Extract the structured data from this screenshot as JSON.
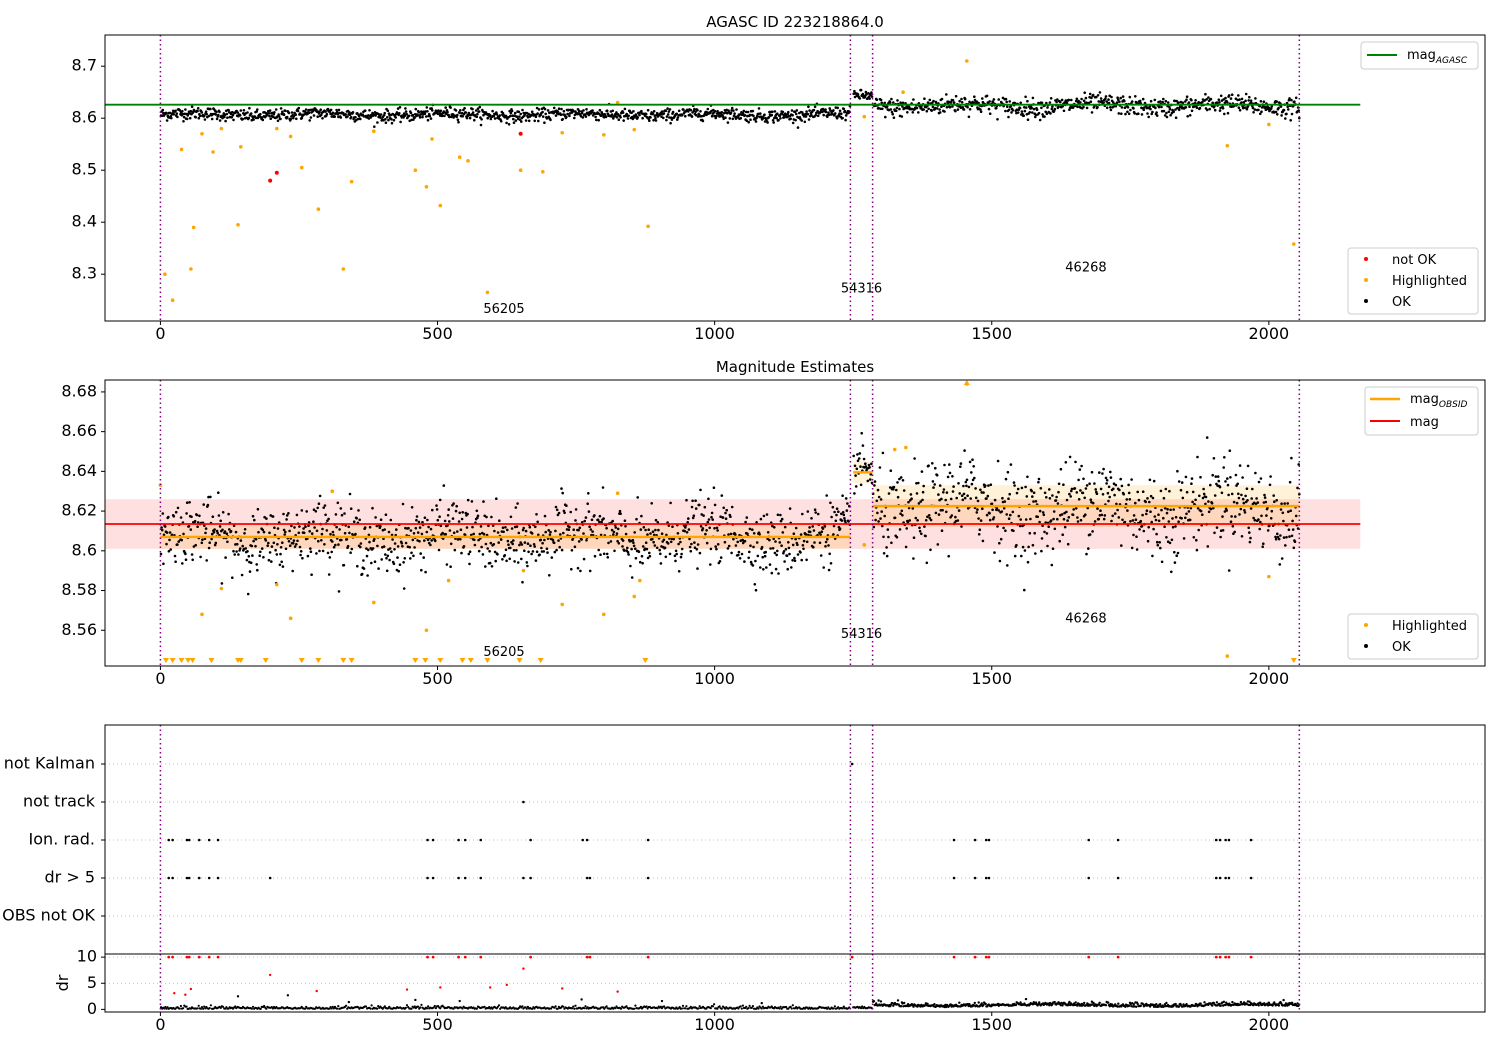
{
  "chart_data": [
    {
      "type": "scatter",
      "title": "AGASC ID 223218864.0",
      "xlim": [
        -100,
        2390
      ],
      "ylim": [
        8.21,
        8.76
      ],
      "xticks": [
        0,
        500,
        1000,
        1500,
        2000
      ],
      "yticks": [
        8.3,
        8.4,
        8.5,
        8.6,
        8.7
      ],
      "obsid_boundaries": [
        0,
        1245,
        1285,
        2055
      ],
      "obsid_labels": [
        {
          "text": "56205",
          "x": 620,
          "y": 8.225
        },
        {
          "text": "54316",
          "x": 1265,
          "y": 8.265
        },
        {
          "text": "46268",
          "x": 1670,
          "y": 8.305
        }
      ],
      "lines": [
        {
          "name": "mag_AGASC",
          "color": "#008000",
          "x": [
            -100,
            2165
          ],
          "y": [
            8.626,
            8.626
          ]
        }
      ],
      "segments": [
        {
          "x": [
            0,
            1245
          ],
          "mean": 8.607,
          "sd": 0.006,
          "color": "#000000"
        },
        {
          "x": [
            1250,
            1285
          ],
          "mean": 8.643,
          "sd": 0.005,
          "color": "#000000"
        },
        {
          "x": [
            1285,
            2055
          ],
          "mean": 8.624,
          "sd": 0.009,
          "color": "#000000"
        }
      ],
      "highlighted": {
        "x": [
          8,
          22,
          38,
          55,
          60,
          75,
          95,
          110,
          140,
          145,
          210,
          235,
          255,
          285,
          330,
          345,
          385,
          460,
          480,
          490,
          505,
          540,
          555,
          590,
          650,
          690,
          725,
          800,
          825,
          855,
          880,
          1270,
          1340,
          1455,
          1925,
          2000,
          2045
        ],
        "y": [
          8.3,
          8.25,
          8.54,
          8.31,
          8.39,
          8.57,
          8.535,
          8.58,
          8.395,
          8.545,
          8.58,
          8.565,
          8.505,
          8.425,
          8.31,
          8.478,
          8.575,
          8.5,
          8.468,
          8.56,
          8.432,
          8.525,
          8.518,
          8.265,
          8.5,
          8.497,
          8.572,
          8.568,
          8.63,
          8.578,
          8.392,
          8.603,
          8.65,
          8.71,
          8.547,
          8.588,
          8.358
        ]
      },
      "not_ok": {
        "x": [
          198,
          210,
          650
        ],
        "y": [
          8.48,
          8.495,
          8.57
        ]
      },
      "legends": [
        {
          "position": "top-right",
          "entries": [
            "mag$_{AGASC}$"
          ]
        },
        {
          "position": "bottom-right",
          "entries": [
            "not OK",
            "Highlighted",
            "OK"
          ]
        }
      ]
    },
    {
      "type": "scatter",
      "title": "Magnitude Estimates",
      "xlim": [
        -100,
        2390
      ],
      "ylim": [
        8.542,
        8.686
      ],
      "xticks": [
        0,
        500,
        1000,
        1500,
        2000
      ],
      "yticks": [
        8.56,
        8.58,
        8.6,
        8.62,
        8.64,
        8.66,
        8.68
      ],
      "obsid_boundaries": [
        0,
        1245,
        1285,
        2055
      ],
      "obsid_labels": [
        {
          "text": "56205",
          "x": 620,
          "y": 8.547
        },
        {
          "text": "54316",
          "x": 1265,
          "y": 8.556
        },
        {
          "text": "46268",
          "x": 1670,
          "y": 8.564
        }
      ],
      "lines": [
        {
          "name": "mag",
          "color": "#ff0000",
          "x": [
            -100,
            2165
          ],
          "y": [
            8.6135,
            8.6135
          ],
          "band": [
            8.601,
            8.626
          ]
        },
        {
          "name": "mag_OBSID",
          "color": "#ffa500",
          "x": [
            0,
            1245
          ],
          "y": [
            8.607,
            8.607
          ],
          "band": [
            8.601,
            8.613
          ]
        },
        {
          "name": "mag_OBSID",
          "color": "#ffa500",
          "x": [
            1250,
            1285
          ],
          "y": [
            8.6395,
            8.6395
          ],
          "band": [
            8.634,
            8.645
          ]
        },
        {
          "name": "mag_OBSID",
          "color": "#ffa500",
          "x": [
            1285,
            2055
          ],
          "y": [
            8.6225,
            8.6225
          ],
          "band": [
            8.612,
            8.633
          ]
        }
      ],
      "segments": [
        {
          "x": [
            0,
            1245
          ],
          "mean": 8.607,
          "sd": 0.008,
          "color": "#000000"
        },
        {
          "x": [
            1250,
            1285
          ],
          "mean": 8.641,
          "sd": 0.006,
          "color": "#000000"
        },
        {
          "x": [
            1285,
            2055
          ],
          "mean": 8.622,
          "sd": 0.011,
          "color": "#000000"
        }
      ],
      "highlighted": {
        "x": [
          0,
          75,
          110,
          210,
          235,
          310,
          385,
          480,
          520,
          655,
          725,
          800,
          825,
          855,
          865,
          1270,
          1325,
          1345,
          1455,
          1925,
          2000
        ],
        "y": [
          8.633,
          8.568,
          8.581,
          8.583,
          8.566,
          8.63,
          8.574,
          8.56,
          8.585,
          8.59,
          8.573,
          8.568,
          8.629,
          8.577,
          8.585,
          8.603,
          8.651,
          8.652,
          8.684,
          8.547,
          8.587
        ]
      },
      "below_range_x": [
        10,
        22,
        38,
        50,
        58,
        92,
        140,
        145,
        190,
        255,
        285,
        330,
        345,
        460,
        478,
        505,
        545,
        560,
        590,
        648,
        686,
        875,
        2045
      ],
      "legends": [
        {
          "position": "top-right",
          "entries": [
            "mag$_{OBSID}$",
            "mag"
          ]
        },
        {
          "position": "bottom-right",
          "entries": [
            "Highlighted",
            "OK"
          ]
        }
      ]
    },
    {
      "type": "scatter",
      "title": "",
      "xlim": [
        -100,
        2390
      ],
      "categories": [
        "not Kalman",
        "not track",
        "Ion. rad.",
        "dr > 5",
        "OBS not OK"
      ],
      "obsid_boundaries": [
        0,
        1245,
        1285,
        2055
      ],
      "flags": {
        "not Kalman": [
          1248
        ],
        "not track": [
          655
        ],
        "Ion. rad.": [
          15,
          22,
          48,
          52,
          70,
          88,
          104,
          482,
          492,
          538,
          550,
          578,
          762,
          770,
          668,
          880,
          1432,
          1470,
          1490,
          1495,
          1675,
          1728,
          1905,
          1912,
          1922,
          1928,
          1968
        ],
        "dr > 5": [
          15,
          22,
          48,
          52,
          70,
          88,
          104,
          198,
          482,
          492,
          538,
          550,
          578,
          655,
          668,
          770,
          775,
          880,
          1432,
          1470,
          1490,
          1495,
          1675,
          1728,
          1905,
          1912,
          1922,
          1928,
          1968
        ]
      }
    },
    {
      "type": "scatter",
      "title": "",
      "ylabel": "dr",
      "xlim": [
        -100,
        2390
      ],
      "ylim": [
        -0.5,
        10.6
      ],
      "xticks": [
        0,
        500,
        1000,
        1500,
        2000
      ],
      "yticks": [
        0,
        5,
        10
      ],
      "obsid_boundaries": [
        0,
        1245,
        1285,
        2055
      ],
      "capped": {
        "x": [
          15,
          22,
          48,
          52,
          70,
          88,
          104,
          482,
          492,
          538,
          550,
          578,
          668,
          770,
          775,
          880,
          1248,
          1432,
          1470,
          1490,
          1495,
          1675,
          1728,
          1905,
          1912,
          1922,
          1928,
          1968
        ],
        "y": 10
      },
      "red_points": {
        "x": [
          25,
          45,
          55,
          198,
          282,
          445,
          505,
          595,
          625,
          655,
          725,
          825
        ],
        "y": [
          3.1,
          2.8,
          3.9,
          6.6,
          3.5,
          3.8,
          4.2,
          4.2,
          4.7,
          7.8,
          4.0,
          3.4
        ]
      }
    }
  ]
}
